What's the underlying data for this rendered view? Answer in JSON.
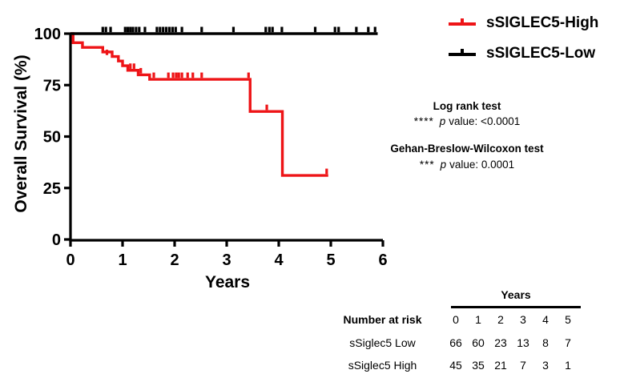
{
  "chart_data": {
    "type": "line",
    "subtype": "kaplan-meier-step",
    "title": "",
    "xlabel": "Years",
    "ylabel": "Overall Survival (%)",
    "xlim": [
      0,
      6
    ],
    "ylim": [
      0,
      100
    ],
    "x_ticks": [
      "0",
      "1",
      "2",
      "3",
      "4",
      "5",
      "6"
    ],
    "y_ticks": [
      "0",
      "25",
      "50",
      "75",
      "100"
    ],
    "grid": false,
    "legend_position": "top-right",
    "series": [
      {
        "name": "sSIGLEC5-High",
        "color": "#ee1417",
        "steps": [
          [
            0,
            100
          ],
          [
            0.05,
            95.6
          ],
          [
            0.23,
            93.3
          ],
          [
            0.62,
            91.1
          ],
          [
            0.8,
            88.9
          ],
          [
            0.92,
            86.7
          ],
          [
            1.0,
            84.4
          ],
          [
            1.1,
            82.2
          ],
          [
            1.3,
            80
          ],
          [
            1.52,
            77.8
          ],
          [
            3.45,
            62.2
          ],
          [
            4.07,
            31.1
          ]
        ],
        "end_x": 4.95,
        "censor_marks": [
          [
            0.7,
            88.9
          ],
          [
            1.15,
            82.2
          ],
          [
            1.22,
            82.2
          ],
          [
            1.35,
            80
          ],
          [
            1.6,
            77.8
          ],
          [
            1.88,
            77.8
          ],
          [
            1.97,
            77.8
          ],
          [
            2.03,
            77.8
          ],
          [
            2.08,
            77.8
          ],
          [
            2.14,
            77.8
          ],
          [
            2.25,
            77.8
          ],
          [
            2.35,
            77.8
          ],
          [
            2.52,
            77.8
          ],
          [
            3.42,
            77.8
          ],
          [
            3.77,
            62.2
          ],
          [
            4.92,
            31.1
          ]
        ]
      },
      {
        "name": "sSIGLEC5-Low",
        "color": "#000000",
        "steps": [
          [
            0,
            100
          ]
        ],
        "end_x": 5.9,
        "censor_marks": [
          [
            0.62,
            100
          ],
          [
            0.68,
            100
          ],
          [
            0.77,
            100
          ],
          [
            1.05,
            100
          ],
          [
            1.1,
            100
          ],
          [
            1.15,
            100
          ],
          [
            1.2,
            100
          ],
          [
            1.26,
            100
          ],
          [
            1.32,
            100
          ],
          [
            1.43,
            100
          ],
          [
            1.66,
            100
          ],
          [
            1.72,
            100
          ],
          [
            1.78,
            100
          ],
          [
            1.84,
            100
          ],
          [
            1.9,
            100
          ],
          [
            1.96,
            100
          ],
          [
            2.02,
            100
          ],
          [
            2.14,
            100
          ],
          [
            2.52,
            100
          ],
          [
            3.13,
            100
          ],
          [
            3.75,
            100
          ],
          [
            3.82,
            100
          ],
          [
            3.88,
            100
          ],
          [
            4.06,
            100
          ],
          [
            4.7,
            100
          ],
          [
            5.08,
            100
          ],
          [
            5.15,
            100
          ],
          [
            5.49,
            100
          ],
          [
            5.72,
            100
          ],
          [
            5.85,
            100
          ]
        ]
      }
    ]
  },
  "legend": {
    "items": [
      {
        "label": "sSIGLEC5-High",
        "color": "#ee1417",
        "symbol": "km-censor-line"
      },
      {
        "label": "sSIGLEC5-Low",
        "color": "#000000",
        "symbol": "km-censor-line"
      }
    ]
  },
  "stats": {
    "logrank": {
      "title": "Log rank test",
      "stars": "****",
      "p": "p",
      "rest": "value: <0.0001"
    },
    "wilcoxon": {
      "title": "Gehan-Breslow-Wilcoxon test",
      "stars": "***",
      "p": "p",
      "rest": "value: 0.0001"
    }
  },
  "risk_table": {
    "years_header": "Years",
    "header_label": "Number at risk",
    "year_columns": [
      "0",
      "1",
      "2",
      "3",
      "4",
      "5"
    ],
    "rows": [
      {
        "label": "sSiglec5 Low",
        "values": [
          "66",
          "60",
          "23",
          "13",
          "8",
          "7"
        ]
      },
      {
        "label": "sSiglec5 High",
        "values": [
          "45",
          "35",
          "21",
          "7",
          "3",
          "1"
        ]
      }
    ]
  }
}
